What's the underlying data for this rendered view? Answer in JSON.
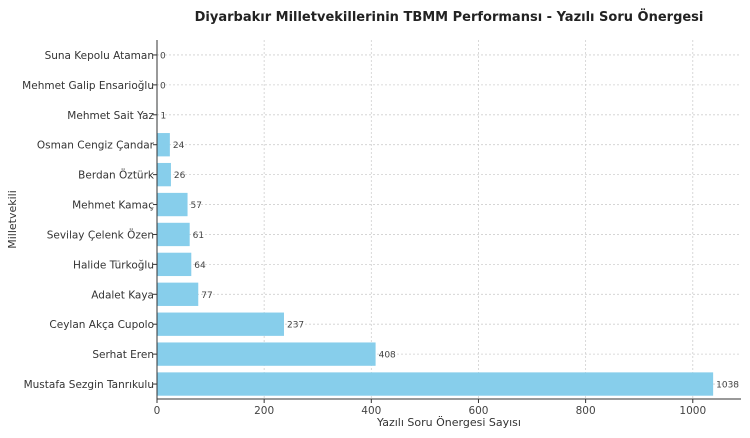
{
  "chart_data": {
    "type": "bar",
    "orientation": "horizontal",
    "title": "Diyarbakır Milletvekillerinin TBMM Performansı - Yazılı Soru Önergesi",
    "xlabel": "Yazılı Soru Önergesi Sayısı",
    "ylabel": "Milletvekili",
    "xlim": [
      0,
      1090
    ],
    "xticks": [
      0,
      200,
      400,
      600,
      800,
      1000
    ],
    "grid": true,
    "bar_color": "#87ceeb",
    "categories": [
      "Suna Kepolu Ataman",
      "Mehmet Galip Ensarioğlu",
      "Mehmet Sait Yaz",
      "Osman Cengiz Çandar",
      "Berdan Öztürk",
      "Mehmet Kamaç",
      "Sevilay Çelenk Özen",
      "Halide Türkoğlu",
      "Adalet Kaya",
      "Ceylan Akça Cupolo",
      "Serhat Eren",
      "Mustafa Sezgin Tanrıkulu"
    ],
    "values": [
      0,
      0,
      1,
      24,
      26,
      57,
      61,
      64,
      77,
      237,
      408,
      1038
    ]
  }
}
